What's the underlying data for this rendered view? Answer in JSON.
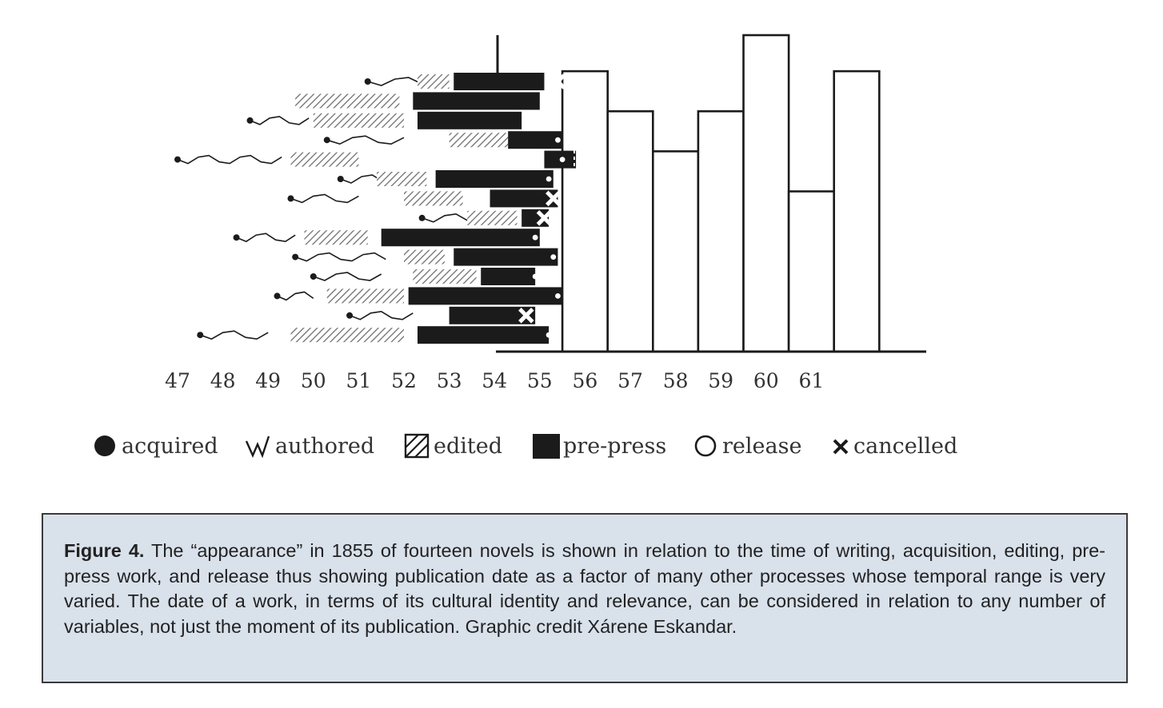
{
  "chart_data": {
    "type": "bar",
    "title": "",
    "xlabel": "",
    "ylabel": "",
    "x_ticks": [
      "47",
      "48",
      "49",
      "50",
      "51",
      "52",
      "53",
      "54",
      "55",
      "56",
      "57",
      "58",
      "59",
      "60",
      "61"
    ],
    "x_tick_values": [
      47,
      48,
      49,
      50,
      51,
      52,
      53,
      54,
      55,
      56,
      57,
      58,
      59,
      60,
      61
    ],
    "appearance_year": 55,
    "histogram": {
      "ylim": [
        0,
        7.9
      ],
      "bars": [
        {
          "start": 55.5,
          "end": 56.5,
          "value": 7.0
        },
        {
          "start": 56.5,
          "end": 57.5,
          "value": 6.0
        },
        {
          "start": 57.5,
          "end": 58.5,
          "value": 5.0
        },
        {
          "start": 58.5,
          "end": 59.5,
          "value": 6.0
        },
        {
          "start": 59.5,
          "end": 60.5,
          "value": 7.9
        },
        {
          "start": 60.5,
          "end": 61.5,
          "value": 4.0
        },
        {
          "start": 61.5,
          "end": 62.5,
          "value": 7.0
        }
      ]
    },
    "novels": [
      {
        "acquired": 51.2,
        "authored": [
          51.2,
          52.4
        ],
        "edited": [
          52.3,
          53.0
        ],
        "prepress": [
          53.1,
          55.1
        ],
        "end": "cancelled",
        "end_x": 55.4
      },
      {
        "acquired": 50.3,
        "authored": [
          50.3,
          51.8
        ],
        "edited": [
          49.6,
          51.9
        ],
        "prepress": [
          52.2,
          55.0
        ],
        "end": "release",
        "end_x": 55.4
      },
      {
        "acquired": 48.6,
        "authored": [
          48.6,
          49.9
        ],
        "edited": [
          50.0,
          52.0
        ],
        "prepress": [
          52.3,
          54.6
        ],
        "end": "release",
        "end_x": 55.0
      },
      {
        "acquired": 50.3,
        "authored": [
          50.3,
          52.0
        ],
        "edited": [
          53.0,
          54.3
        ],
        "prepress": [
          54.3,
          55.5
        ],
        "end": "release",
        "end_x": 55.4
      },
      {
        "acquired": 47.0,
        "authored": [
          47.0,
          49.3
        ],
        "edited": [
          49.5,
          51.0
        ],
        "prepress": [
          55.1,
          55.8
        ],
        "end": "release",
        "end_x": 55.5
      },
      {
        "acquired": 50.6,
        "authored": [
          50.6,
          52.0
        ],
        "edited": [
          51.4,
          52.5
        ],
        "prepress": [
          52.7,
          55.3
        ],
        "end": "release",
        "end_x": 55.2
      },
      {
        "acquired": 49.5,
        "authored": [
          49.5,
          51.0
        ],
        "edited": [
          52.0,
          53.3
        ],
        "prepress": [
          53.9,
          55.4
        ],
        "end": "cancelled",
        "end_x": 55.3
      },
      {
        "acquired": 52.4,
        "authored": [
          52.4,
          53.4
        ],
        "edited": [
          53.4,
          54.5
        ],
        "prepress": [
          54.6,
          55.2
        ],
        "end": "cancelled",
        "end_x": 55.1
      },
      {
        "acquired": 48.3,
        "authored": [
          48.3,
          49.6
        ],
        "edited": [
          49.8,
          51.2
        ],
        "prepress": [
          51.5,
          55.0
        ],
        "end": "release",
        "end_x": 54.9
      },
      {
        "acquired": 49.6,
        "authored": [
          49.6,
          51.6
        ],
        "edited": [
          52.0,
          52.9
        ],
        "prepress": [
          53.1,
          55.4
        ],
        "end": "release",
        "end_x": 55.3
      },
      {
        "acquired": 50.0,
        "authored": [
          50.0,
          51.5
        ],
        "edited": [
          52.2,
          53.6
        ],
        "prepress": [
          53.7,
          54.9
        ],
        "end": "release",
        "end_x": 54.9
      },
      {
        "acquired": 49.2,
        "authored": [
          49.2,
          50.0
        ],
        "edited": [
          50.3,
          52.0
        ],
        "prepress": [
          52.1,
          55.5
        ],
        "end": "release",
        "end_x": 55.4
      },
      {
        "acquired": 50.8,
        "authored": [
          50.8,
          52.2
        ],
        "edited": [
          0,
          0
        ],
        "prepress": [
          53.0,
          54.9
        ],
        "end": "cancelled",
        "end_x": 54.7
      },
      {
        "acquired": 47.5,
        "authored": [
          47.5,
          49.0
        ],
        "edited": [
          49.5,
          52.0
        ],
        "prepress": [
          52.3,
          55.2
        ],
        "end": "release",
        "end_x": 55.2
      }
    ],
    "legend_placement": "bottom",
    "legend": [
      {
        "key": "acquired",
        "label": "acquired"
      },
      {
        "key": "authored",
        "label": "authored"
      },
      {
        "key": "edited",
        "label": "edited"
      },
      {
        "key": "prepress",
        "label": "pre-press"
      },
      {
        "key": "release",
        "label": "release"
      },
      {
        "key": "cancelled",
        "label": "cancelled"
      }
    ],
    "colors": {
      "ink": "#1b1b1b",
      "hatch": "#777777",
      "axis": "#1b1b1b"
    }
  },
  "caption": {
    "label": "Figure 4.",
    "text": " The “appearance” in 1855 of fourteen novels is shown in relation to the time of writing, acquisition, editing, pre-press work, and release thus showing publication date as a factor of many other processes whose temporal range is very varied. The date of a work, in terms of its cultural identity and relevance, can be considered in relation to any number of variables, not just the moment of its publication. Graphic credit Xárene Eskandar."
  }
}
